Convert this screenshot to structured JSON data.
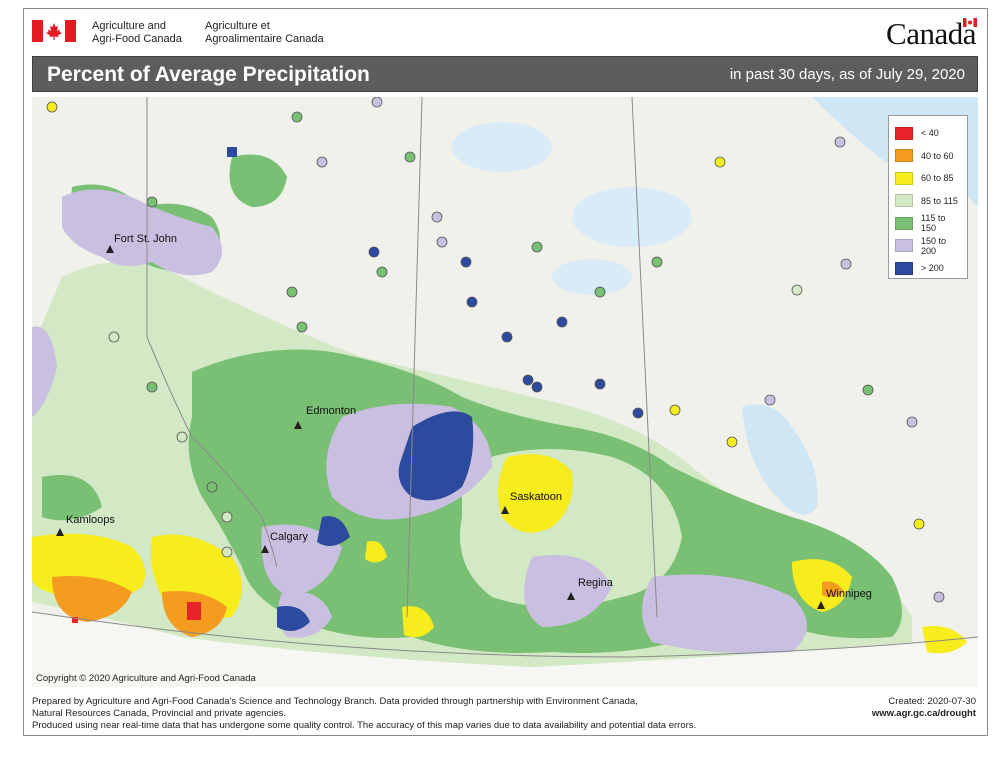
{
  "header": {
    "dept_en_line1": "Agriculture and",
    "dept_en_line2": "Agri-Food Canada",
    "dept_fr_line1": "Agriculture et",
    "dept_fr_line2": "Agroalimentaire Canada",
    "wordmark": "Canada",
    "flag_red": "#e31b23"
  },
  "titlebar": {
    "title": "Percent of Average Precipitation",
    "subtitle": "in past 30 days, as of July 29, 2020",
    "background": "#5d5d5d"
  },
  "legend": {
    "items": [
      {
        "label": "< 40",
        "color": "#e8242a"
      },
      {
        "label": "40 to 60",
        "color": "#f39c1f"
      },
      {
        "label": "60 to 85",
        "color": "#f7ec1c"
      },
      {
        "label": "85 to 115",
        "color": "#d3e8c4"
      },
      {
        "label": "115 to 150",
        "color": "#79bf74"
      },
      {
        "label": "150 to 200",
        "color": "#c9bfe0"
      },
      {
        "label": "> 200",
        "color": "#2c4a9e"
      }
    ]
  },
  "cities": [
    {
      "name": "Fort St. John"
    },
    {
      "name": "Edmonton"
    },
    {
      "name": "Kamloops"
    },
    {
      "name": "Calgary"
    },
    {
      "name": "Saskatoon"
    },
    {
      "name": "Regina"
    },
    {
      "name": "Winnipeg"
    }
  ],
  "copyright": "Copyright © 2020 Agriculture and Agri-Food Canada",
  "footer": {
    "line1": "Prepared by Agriculture and Agri-Food Canada's Science and Technology Branch. Data provided through partnership with Environment Canada,",
    "line2": "Natural Resources Canada, Provincial and private agencies.",
    "line3": "Produced using near real-time data that has undergone some quality control. The accuracy of this map varies due to data availability and potential data errors.",
    "created": "Created: 2020-07-30",
    "url": "www.agr.gc.ca/drought"
  }
}
